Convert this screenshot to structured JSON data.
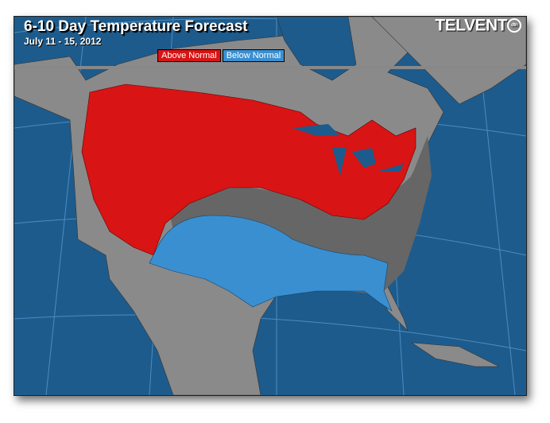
{
  "header": {
    "title": "6-10 Day Temperature Forecast",
    "date_range": "July 11 - 15, 2012",
    "logo_text": "TELVENT",
    "logo_badge": "dtn"
  },
  "legend": [
    {
      "label": "Above Normal",
      "color": "#d81414"
    },
    {
      "label": "Below Normal",
      "color": "#3a8fd0"
    }
  ],
  "colors": {
    "ocean": "#1d5b8c",
    "land": "#8a8a8a",
    "near_normal": "#666666",
    "above": "#d81414",
    "below": "#3a8fd0"
  }
}
